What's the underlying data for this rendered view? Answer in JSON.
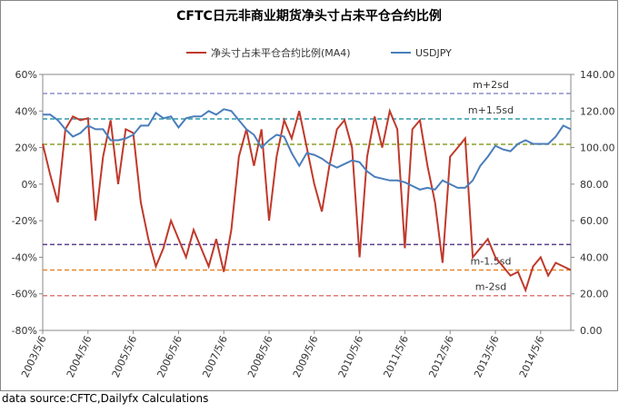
{
  "chart_data": {
    "type": "line",
    "title": "CFTC日元非商业期货净头寸占未平仓合约比例",
    "footer": "data source:CFTC,Dailyfx Calculations",
    "categories": [
      "2003/5/6",
      null,
      null,
      null,
      null,
      null,
      "2004/5/6",
      null,
      null,
      null,
      null,
      null,
      "2005/5/6",
      null,
      null,
      null,
      null,
      null,
      "2006/5/6",
      null,
      null,
      null,
      null,
      null,
      "2007/5/6",
      null,
      null,
      null,
      null,
      null,
      "2008/5/6",
      null,
      null,
      null,
      null,
      null,
      "2009/5/6",
      null,
      null,
      null,
      null,
      null,
      "2010/5/6",
      null,
      null,
      null,
      null,
      null,
      "2011/5/6",
      null,
      null,
      null,
      null,
      null,
      "2012/5/6",
      null,
      null,
      null,
      null,
      null,
      "2013/5/6",
      null,
      null,
      null,
      null,
      null,
      "2014/5/6",
      null,
      null,
      null,
      null
    ],
    "series": [
      {
        "name": "净头寸占未平仓合约比例(MA4)",
        "color": "#c0392b",
        "values": [
          22,
          5,
          -10,
          30,
          37,
          35,
          36,
          -20,
          15,
          35,
          0,
          30,
          28,
          -10,
          -30,
          -45,
          -35,
          -20,
          -30,
          -40,
          -25,
          -35,
          -45,
          -30,
          -48,
          -25,
          15,
          30,
          10,
          30,
          -20,
          15,
          35,
          25,
          40,
          20,
          0,
          -15,
          10,
          30,
          35,
          20,
          -40,
          15,
          37,
          20,
          40,
          30,
          -35,
          30,
          35,
          10,
          -10,
          -43,
          15,
          20,
          25,
          -40,
          -35,
          -30,
          -40,
          -45,
          -50,
          -48,
          -58,
          -45,
          -40,
          -50,
          -43,
          -45,
          -47
        ]
      },
      {
        "name": "USDJPY",
        "color": "#4a7ebb",
        "axis": "y2",
        "values": [
          118,
          118,
          115,
          110,
          106,
          108,
          112,
          110,
          110,
          104,
          104,
          105,
          107,
          112,
          112,
          119,
          116,
          117,
          111,
          116,
          117,
          117,
          120,
          118,
          121,
          120,
          115,
          110,
          107,
          100,
          104,
          107,
          106,
          97,
          90,
          97,
          96,
          94,
          91,
          89,
          91,
          93,
          92,
          87,
          84,
          83,
          82,
          82,
          81,
          79,
          77,
          78,
          77,
          82,
          80,
          78,
          78,
          82,
          90,
          95,
          101,
          99,
          98,
          102,
          104,
          102,
          102,
          102,
          106,
          112,
          110
        ]
      }
    ],
    "ylim": [
      -80,
      60
    ],
    "yticks": [
      {
        "value": -80,
        "label": "-80%"
      },
      {
        "value": -60,
        "label": "-60%"
      },
      {
        "value": -40,
        "label": "-40%"
      },
      {
        "value": -20,
        "label": "-20%"
      },
      {
        "value": 0,
        "label": "0%"
      },
      {
        "value": 20,
        "label": "20%"
      },
      {
        "value": 40,
        "label": "40%"
      },
      {
        "value": 60,
        "label": "60%"
      }
    ],
    "y2lim": [
      0,
      140
    ],
    "y2ticks": [
      {
        "value": 0,
        "label": "0.00"
      },
      {
        "value": 20,
        "label": "20.00"
      },
      {
        "value": 40,
        "label": "40.00"
      },
      {
        "value": 60,
        "label": "60.00"
      },
      {
        "value": 80,
        "label": "80.00"
      },
      {
        "value": 100,
        "label": "100.00"
      },
      {
        "value": 120,
        "label": "120.00"
      },
      {
        "value": 140,
        "label": "140.00"
      }
    ],
    "reference_lines": [
      {
        "value": 49.6,
        "label": "m+2sd",
        "color": "#8e8ec8"
      },
      {
        "value": 35.7,
        "label": "m+1.5sd",
        "color": "#2e9aa8"
      },
      {
        "value": 21.8,
        "color": "#8aa02a"
      },
      {
        "value": -33,
        "color": "#5b3f8c"
      },
      {
        "value": -47,
        "label": "m-1.5sd",
        "color": "#e8862a"
      },
      {
        "value": -61,
        "label": "m-2sd",
        "color": "#e07a7a"
      }
    ],
    "grid": false,
    "legend": "top"
  }
}
